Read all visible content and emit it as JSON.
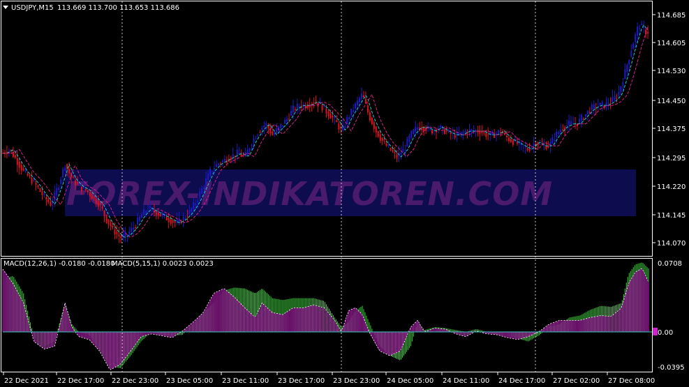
{
  "header": {
    "symbol_tf": "USDJPY,M15",
    "ohlc": "113.669 113.700 113.653 113.686"
  },
  "indicator_header": {
    "macd1": "MACD(12,26,1) -0.0180 -0.0180",
    "macd2": "MACD(5,15,1) 0.0023 0.0023"
  },
  "watermark": "FOREX-INDIKATOREN.COM",
  "colors": {
    "background": "#000000",
    "axis": "#ffffff",
    "bull": "#1c1cc8",
    "bear": "#e01020",
    "ma_fast": "#20c8c8",
    "ma_slow": "#d8208a",
    "macd_slow": "#d020d0",
    "macd_fast": "#40d040",
    "zero_line": "#40c8c8",
    "watermark_band": "#0c0c4e"
  },
  "price_axis": {
    "labels": [
      "114.685",
      "114.605",
      "114.530",
      "114.450",
      "114.375",
      "114.295",
      "114.220",
      "114.145",
      "114.070"
    ]
  },
  "macd_axis": {
    "labels": [
      "0.0708",
      "0.00",
      "-0.0395"
    ]
  },
  "time_axis": {
    "labels": [
      "22 Dec 2021",
      "22 Dec 17:00",
      "22 Dec 23:00",
      "23 Dec 05:00",
      "23 Dec 11:00",
      "23 Dec 17:00",
      "23 Dec 23:00",
      "24 Dec 05:00",
      "24 Dec 11:00",
      "24 Dec 17:00",
      "27 Dec 02:00",
      "27 Dec 08:00"
    ]
  },
  "chart_data": {
    "type": "candlestick",
    "price_path": [
      [
        0,
        114.31
      ],
      [
        10,
        114.32
      ],
      [
        20,
        114.29
      ],
      [
        30,
        114.26
      ],
      [
        45,
        114.23
      ],
      [
        60,
        114.19
      ],
      [
        70,
        114.17
      ],
      [
        80,
        114.22
      ],
      [
        90,
        114.28
      ],
      [
        100,
        114.24
      ],
      [
        110,
        114.22
      ],
      [
        120,
        114.21
      ],
      [
        130,
        114.19
      ],
      [
        140,
        114.17
      ],
      [
        150,
        114.13
      ],
      [
        160,
        114.1
      ],
      [
        170,
        114.08
      ],
      [
        180,
        114.09
      ],
      [
        190,
        114.11
      ],
      [
        200,
        114.14
      ],
      [
        210,
        114.16
      ],
      [
        220,
        114.15
      ],
      [
        230,
        114.14
      ],
      [
        240,
        114.13
      ],
      [
        250,
        114.12
      ],
      [
        260,
        114.13
      ],
      [
        270,
        114.15
      ],
      [
        280,
        114.18
      ],
      [
        290,
        114.22
      ],
      [
        300,
        114.26
      ],
      [
        310,
        114.28
      ],
      [
        320,
        114.29
      ],
      [
        330,
        114.3
      ],
      [
        340,
        114.31
      ],
      [
        350,
        114.3
      ],
      [
        360,
        114.34
      ],
      [
        370,
        114.37
      ],
      [
        380,
        114.39
      ],
      [
        390,
        114.36
      ],
      [
        400,
        114.38
      ],
      [
        410,
        114.4
      ],
      [
        420,
        114.43
      ],
      [
        430,
        114.44
      ],
      [
        440,
        114.44
      ],
      [
        450,
        114.45
      ],
      [
        460,
        114.44
      ],
      [
        470,
        114.42
      ],
      [
        480,
        114.4
      ],
      [
        490,
        114.37
      ],
      [
        500,
        114.41
      ],
      [
        510,
        114.44
      ],
      [
        520,
        114.47
      ],
      [
        530,
        114.41
      ],
      [
        540,
        114.37
      ],
      [
        550,
        114.34
      ],
      [
        560,
        114.32
      ],
      [
        570,
        114.3
      ],
      [
        580,
        114.32
      ],
      [
        590,
        114.36
      ],
      [
        600,
        114.38
      ],
      [
        610,
        114.38
      ],
      [
        620,
        114.37
      ],
      [
        630,
        114.38
      ],
      [
        640,
        114.37
      ],
      [
        650,
        114.36
      ],
      [
        660,
        114.36
      ],
      [
        670,
        114.37
      ],
      [
        680,
        114.37
      ],
      [
        690,
        114.37
      ],
      [
        700,
        114.36
      ],
      [
        710,
        114.36
      ],
      [
        720,
        114.37
      ],
      [
        730,
        114.35
      ],
      [
        740,
        114.34
      ],
      [
        750,
        114.33
      ],
      [
        760,
        114.32
      ],
      [
        770,
        114.34
      ],
      [
        780,
        114.33
      ],
      [
        790,
        114.33
      ],
      [
        800,
        114.36
      ],
      [
        810,
        114.38
      ],
      [
        820,
        114.39
      ],
      [
        830,
        114.39
      ],
      [
        840,
        114.41
      ],
      [
        850,
        114.43
      ],
      [
        860,
        114.44
      ],
      [
        870,
        114.44
      ],
      [
        880,
        114.45
      ],
      [
        890,
        114.47
      ],
      [
        900,
        114.53
      ],
      [
        910,
        114.6
      ],
      [
        920,
        114.66
      ],
      [
        930,
        114.64
      ]
    ],
    "macd_fast_path": [
      [
        0,
        0.055
      ],
      [
        15,
        0.058
      ],
      [
        30,
        0.04
      ],
      [
        45,
        -0.005
      ],
      [
        60,
        -0.015
      ],
      [
        75,
        -0.01
      ],
      [
        90,
        0.03
      ],
      [
        100,
        0.008
      ],
      [
        110,
        0.0
      ],
      [
        125,
        -0.003
      ],
      [
        140,
        -0.02
      ],
      [
        155,
        -0.036
      ],
      [
        170,
        -0.038
      ],
      [
        185,
        -0.025
      ],
      [
        200,
        -0.01
      ],
      [
        215,
        0.0
      ],
      [
        230,
        -0.003
      ],
      [
        245,
        -0.004
      ],
      [
        260,
        -0.003
      ],
      [
        275,
        0.008
      ],
      [
        290,
        0.02
      ],
      [
        305,
        0.03
      ],
      [
        320,
        0.043
      ],
      [
        335,
        0.046
      ],
      [
        350,
        0.045
      ],
      [
        365,
        0.04
      ],
      [
        375,
        0.045
      ],
      [
        390,
        0.035
      ],
      [
        405,
        0.033
      ],
      [
        420,
        0.035
      ],
      [
        435,
        0.035
      ],
      [
        450,
        0.035
      ],
      [
        465,
        0.032
      ],
      [
        480,
        0.015
      ],
      [
        490,
        0.005
      ],
      [
        500,
        0.01
      ],
      [
        510,
        0.022
      ],
      [
        520,
        0.027
      ],
      [
        530,
        0.01
      ],
      [
        545,
        -0.015
      ],
      [
        560,
        -0.025
      ],
      [
        575,
        -0.03
      ],
      [
        590,
        -0.015
      ],
      [
        600,
        0.01
      ],
      [
        610,
        0.002
      ],
      [
        625,
        0.005
      ],
      [
        640,
        0.004
      ],
      [
        655,
        0.002
      ],
      [
        670,
        0.0
      ],
      [
        685,
        0.003
      ],
      [
        700,
        0.0
      ],
      [
        715,
        -0.003
      ],
      [
        730,
        -0.004
      ],
      [
        745,
        -0.007
      ],
      [
        760,
        -0.01
      ],
      [
        775,
        -0.004
      ],
      [
        790,
        0.005
      ],
      [
        805,
        0.008
      ],
      [
        820,
        0.015
      ],
      [
        835,
        0.017
      ],
      [
        850,
        0.023
      ],
      [
        865,
        0.027
      ],
      [
        880,
        0.026
      ],
      [
        895,
        0.03
      ],
      [
        905,
        0.06
      ],
      [
        915,
        0.07
      ],
      [
        925,
        0.072
      ],
      [
        935,
        0.065
      ]
    ],
    "macd_slow_path": [
      [
        0,
        0.065
      ],
      [
        15,
        0.05
      ],
      [
        30,
        0.03
      ],
      [
        45,
        -0.01
      ],
      [
        60,
        -0.018
      ],
      [
        75,
        -0.015
      ],
      [
        90,
        0.03
      ],
      [
        100,
        0.005
      ],
      [
        110,
        -0.005
      ],
      [
        125,
        -0.008
      ],
      [
        140,
        -0.02
      ],
      [
        155,
        -0.04
      ],
      [
        170,
        -0.034
      ],
      [
        185,
        -0.02
      ],
      [
        200,
        -0.005
      ],
      [
        215,
        -0.002
      ],
      [
        230,
        -0.004
      ],
      [
        245,
        -0.006
      ],
      [
        260,
        0.001
      ],
      [
        275,
        0.01
      ],
      [
        290,
        0.02
      ],
      [
        305,
        0.04
      ],
      [
        320,
        0.045
      ],
      [
        335,
        0.036
      ],
      [
        350,
        0.025
      ],
      [
        365,
        0.015
      ],
      [
        375,
        0.03
      ],
      [
        390,
        0.02
      ],
      [
        405,
        0.018
      ],
      [
        420,
        0.025
      ],
      [
        435,
        0.025
      ],
      [
        450,
        0.028
      ],
      [
        465,
        0.025
      ],
      [
        480,
        0.012
      ],
      [
        490,
        0.0
      ],
      [
        500,
        0.022
      ],
      [
        510,
        0.025
      ],
      [
        520,
        0.018
      ],
      [
        530,
        0.0
      ],
      [
        545,
        -0.02
      ],
      [
        560,
        -0.025
      ],
      [
        575,
        -0.02
      ],
      [
        590,
        0.005
      ],
      [
        600,
        0.012
      ],
      [
        610,
        0.0
      ],
      [
        625,
        0.004
      ],
      [
        640,
        0.003
      ],
      [
        655,
        -0.002
      ],
      [
        670,
        -0.005
      ],
      [
        685,
        0.001
      ],
      [
        700,
        -0.002
      ],
      [
        715,
        -0.003
      ],
      [
        730,
        -0.006
      ],
      [
        745,
        -0.008
      ],
      [
        760,
        -0.005
      ],
      [
        775,
        0.0
      ],
      [
        790,
        0.008
      ],
      [
        805,
        0.012
      ],
      [
        820,
        0.012
      ],
      [
        835,
        0.012
      ],
      [
        850,
        0.015
      ],
      [
        865,
        0.017
      ],
      [
        880,
        0.016
      ],
      [
        895,
        0.025
      ],
      [
        905,
        0.05
      ],
      [
        915,
        0.062
      ],
      [
        925,
        0.066
      ],
      [
        935,
        0.05
      ]
    ],
    "price_range": [
      114.04,
      114.7
    ],
    "macd_range": [
      -0.0395,
      0.0708
    ],
    "x_range": [
      0,
      935
    ]
  }
}
